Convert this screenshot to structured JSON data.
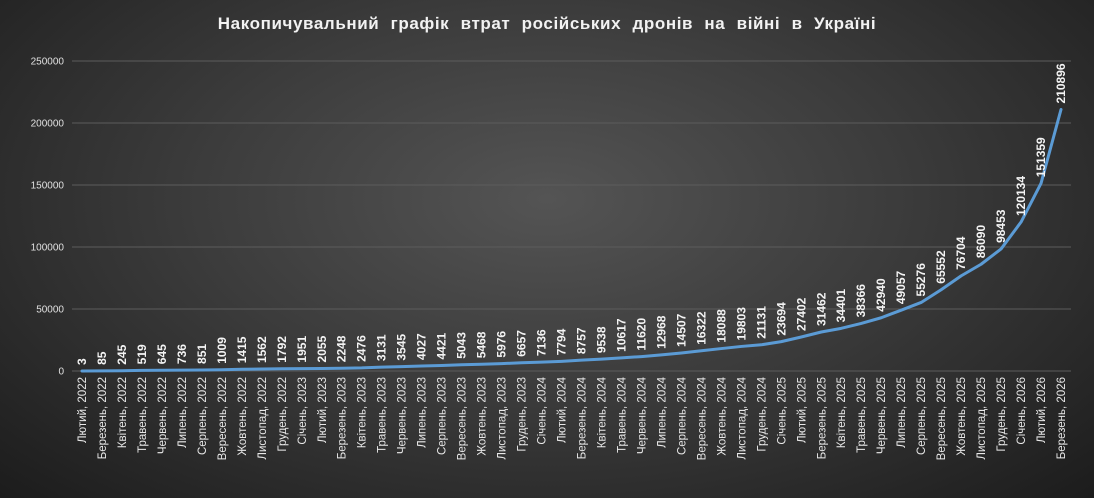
{
  "chart_data": {
    "type": "line",
    "title": "Накопичувальний графік втрат російських дронів на війні в Україні",
    "line_color": "#5b9bd5",
    "ylim": [
      0,
      250000
    ],
    "yticks": [
      0,
      50000,
      100000,
      150000,
      200000,
      250000
    ],
    "grid": true,
    "categories": [
      "Лютий, 2022",
      "Березень, 2022",
      "Квітень, 2022",
      "Травень, 2022",
      "Червень, 2022",
      "Липень, 2022",
      "Серпень, 2022",
      "Вересень, 2022",
      "Жовтень, 2022",
      "Листопад, 2022",
      "Грудень, 2022",
      "Січень, 2023",
      "Лютий, 2023",
      "Березень, 2023",
      "Квітень, 2023",
      "Травень, 2023",
      "Червень, 2023",
      "Липень, 2023",
      "Серпень, 2023",
      "Вересень, 2023",
      "Жовтень, 2023",
      "Листопад, 2023",
      "Грудень, 2023",
      "Січень, 2024",
      "Лютий, 2024",
      "Березень, 2024",
      "Квітень, 2024",
      "Травень, 2024",
      "Червень, 2024",
      "Липень, 2024",
      "Серпень, 2024",
      "Вересень, 2024",
      "Жовтень, 2024",
      "Листопад, 2024",
      "Грудень, 2024",
      "Січень, 2025",
      "Лютий, 2025",
      "Березень, 2025",
      "Квітень, 2025",
      "Травень, 2025",
      "Червень, 2025",
      "Липень, 2025",
      "Серпень, 2025",
      "Вересень, 2025",
      "Жовтень, 2025",
      "Листопад, 2025",
      "Грудень, 2025",
      "Січень, 2026",
      "Лютий, 2026",
      "Березень, 2026"
    ],
    "values": [
      3,
      85,
      245,
      519,
      645,
      736,
      851,
      1009,
      1415,
      1562,
      1792,
      1951,
      2055,
      2248,
      2476,
      3131,
      3545,
      4027,
      4421,
      5043,
      5468,
      5976,
      6657,
      7136,
      7794,
      8757,
      9538,
      10617,
      11620,
      12968,
      14507,
      16322,
      18088,
      19803,
      21131,
      23694,
      27402,
      31462,
      34401,
      38366,
      42940,
      49057,
      55276,
      65552,
      76704,
      86090,
      98453,
      120134,
      151359,
      210896
    ]
  }
}
